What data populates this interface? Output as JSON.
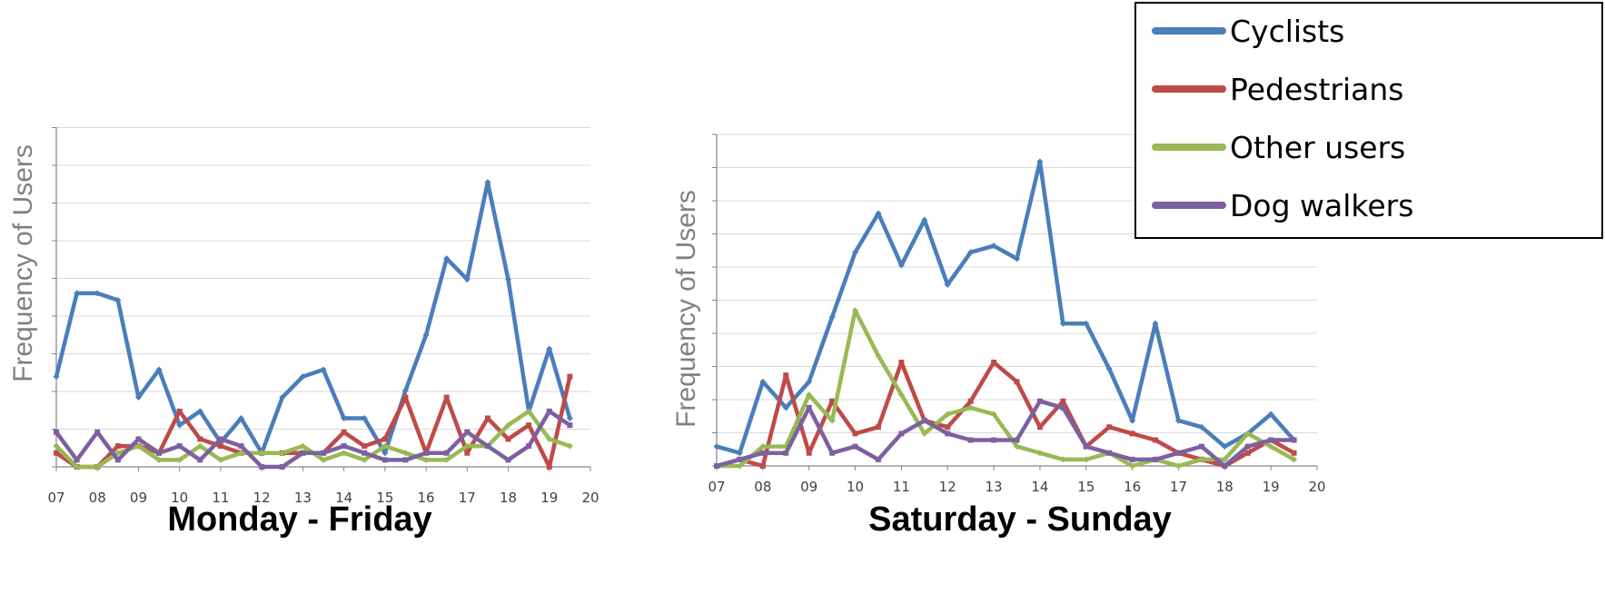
{
  "colors": {
    "Cyclists": "#4a7ebb",
    "Pedestrians": "#be4b48",
    "Other users": "#98b954",
    "Dog walkers": "#7d60a0",
    "grid": "#d9d9d9",
    "axis": "#868686"
  },
  "legend": {
    "items": [
      "Cyclists",
      "Pedestrians",
      "Other users",
      "Dog walkers"
    ]
  },
  "chart_data": [
    {
      "type": "line",
      "title": "Monday - Friday",
      "ylabel": "Frequency of Users",
      "xlabel": "",
      "x_ticks": [
        "07",
        "08",
        "09",
        "10",
        "11",
        "12",
        "13",
        "14",
        "15",
        "16",
        "17",
        "18",
        "19",
        "20"
      ],
      "xlim": [
        7,
        20
      ],
      "ylim": [
        0,
        9
      ],
      "grid": "horizontal",
      "x": [
        7,
        7.5,
        8,
        8.5,
        9,
        9.5,
        10,
        10.5,
        11,
        11.5,
        12,
        12.5,
        13,
        13.5,
        14,
        14.5,
        15,
        15.5,
        16,
        16.5,
        17,
        17.5,
        18,
        18.5,
        19,
        19.5
      ],
      "series": [
        {
          "name": "Cyclists",
          "values": [
            2.6,
            5.0,
            5.0,
            4.8,
            2.0,
            2.8,
            1.2,
            1.6,
            0.7,
            1.4,
            0.4,
            2.0,
            2.6,
            2.8,
            1.4,
            1.4,
            0.4,
            2.2,
            3.8,
            6.0,
            5.4,
            8.2,
            5.4,
            1.6,
            3.4,
            1.4
          ]
        },
        {
          "name": "Pedestrians",
          "values": [
            0.4,
            0.0,
            0.0,
            0.6,
            0.6,
            0.4,
            1.6,
            0.8,
            0.6,
            0.4,
            0.4,
            0.4,
            0.4,
            0.4,
            1.0,
            0.6,
            0.8,
            2.0,
            0.4,
            2.0,
            0.4,
            1.4,
            0.8,
            1.2,
            0.0,
            2.6
          ]
        },
        {
          "name": "Other users",
          "values": [
            0.6,
            0.0,
            0.0,
            0.4,
            0.6,
            0.2,
            0.2,
            0.6,
            0.2,
            0.4,
            0.4,
            0.4,
            0.6,
            0.2,
            0.4,
            0.2,
            0.6,
            0.4,
            0.2,
            0.2,
            0.6,
            0.6,
            1.2,
            1.6,
            0.8,
            0.6
          ]
        },
        {
          "name": "Dog walkers",
          "values": [
            1.0,
            0.2,
            1.0,
            0.2,
            0.8,
            0.4,
            0.6,
            0.2,
            0.8,
            0.6,
            0.0,
            0.0,
            0.4,
            0.4,
            0.6,
            0.4,
            0.2,
            0.2,
            0.4,
            0.4,
            1.0,
            0.6,
            0.2,
            0.6,
            1.6,
            1.2
          ]
        }
      ]
    },
    {
      "type": "line",
      "title": "Saturday - Sunday",
      "ylabel": "Frequency of Users",
      "xlabel": "",
      "x_ticks": [
        "07",
        "08",
        "09",
        "10",
        "11",
        "12",
        "13",
        "14",
        "15",
        "16",
        "17",
        "18",
        "19",
        "20"
      ],
      "xlim": [
        7,
        20
      ],
      "ylim": [
        0,
        9.4
      ],
      "grid": "horizontal",
      "x": [
        7,
        7.5,
        8,
        8.5,
        9,
        9.5,
        10,
        10.5,
        11,
        11.5,
        12,
        12.5,
        13,
        13.5,
        14,
        14.5,
        15,
        15.5,
        16,
        16.5,
        17,
        17.5,
        18,
        18.5,
        19,
        19.5
      ],
      "series": [
        {
          "name": "Cyclists",
          "values": [
            0.6,
            0.4,
            2.6,
            1.8,
            2.6,
            4.6,
            6.6,
            7.8,
            6.2,
            7.6,
            5.6,
            6.6,
            6.8,
            6.4,
            9.4,
            4.4,
            4.4,
            3.0,
            1.4,
            4.4,
            1.4,
            1.2,
            0.6,
            1.0,
            1.6,
            0.8
          ]
        },
        {
          "name": "Pedestrians",
          "values": [
            0.0,
            0.2,
            0.0,
            2.8,
            0.4,
            2.0,
            1.0,
            1.2,
            3.2,
            1.4,
            1.2,
            2.0,
            3.2,
            2.6,
            1.2,
            2.0,
            0.6,
            1.2,
            1.0,
            0.8,
            0.4,
            0.2,
            0.0,
            0.4,
            0.8,
            0.4
          ]
        },
        {
          "name": "Other users",
          "values": [
            0.0,
            0.0,
            0.6,
            0.6,
            2.2,
            1.4,
            4.8,
            3.4,
            2.2,
            1.0,
            1.6,
            1.8,
            1.6,
            0.6,
            0.4,
            0.2,
            0.2,
            0.4,
            0.0,
            0.2,
            0.0,
            0.2,
            0.2,
            1.0,
            0.6,
            0.2
          ]
        },
        {
          "name": "Dog walkers",
          "values": [
            0.0,
            0.2,
            0.4,
            0.4,
            1.8,
            0.4,
            0.6,
            0.2,
            1.0,
            1.4,
            1.0,
            0.8,
            0.8,
            0.8,
            2.0,
            1.8,
            0.6,
            0.4,
            0.2,
            0.2,
            0.4,
            0.6,
            0.0,
            0.6,
            0.8,
            0.8
          ]
        }
      ]
    }
  ]
}
